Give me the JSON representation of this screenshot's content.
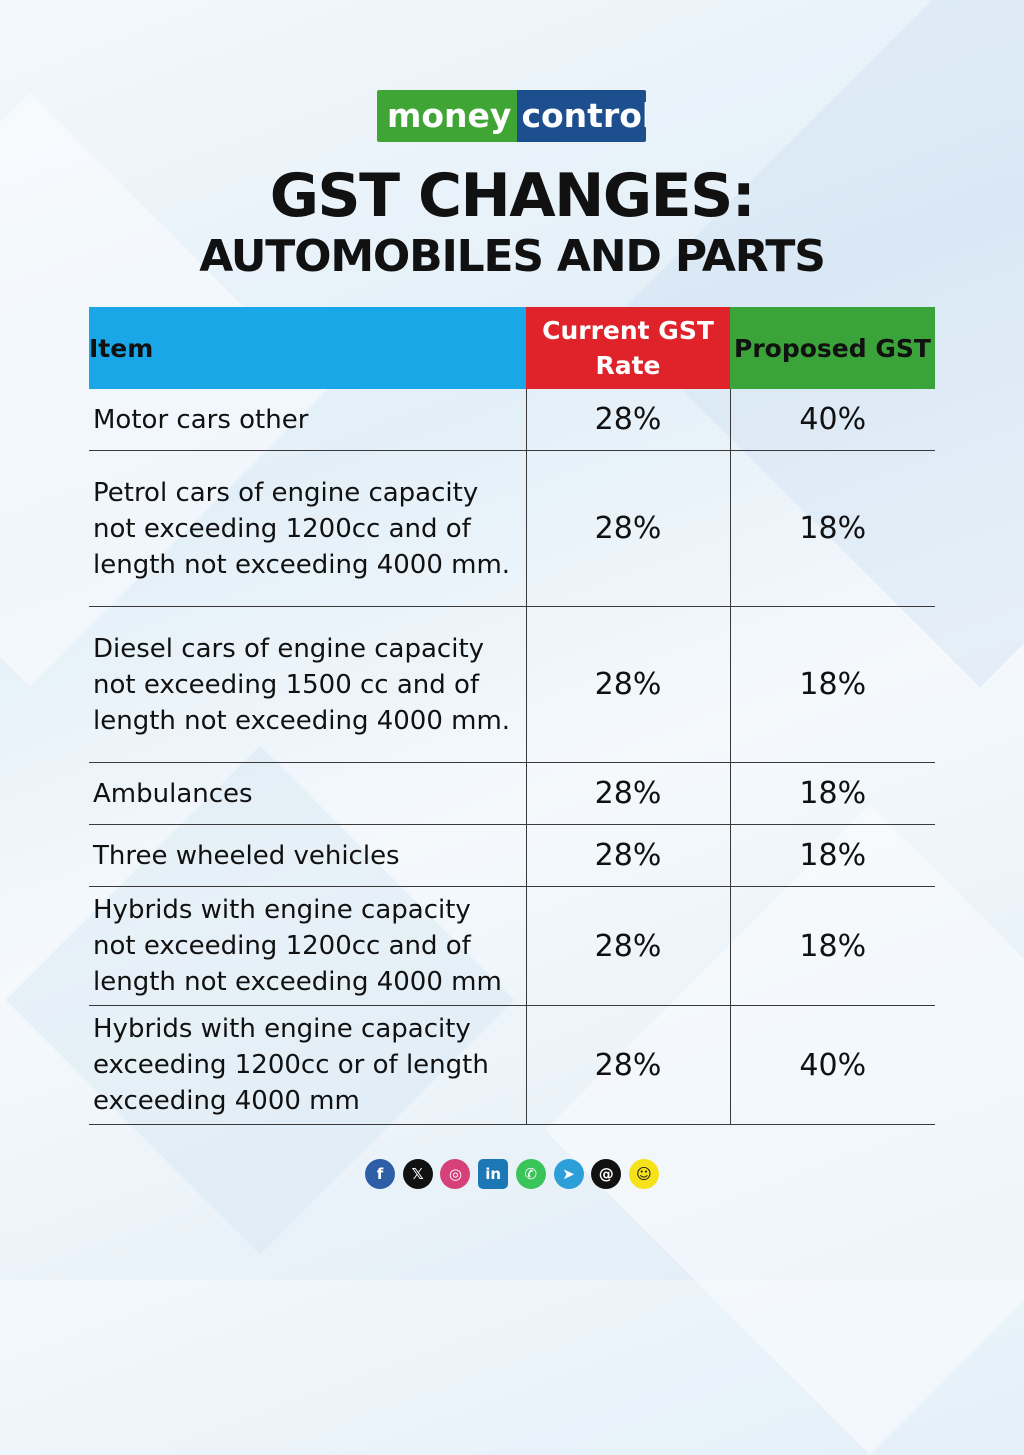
{
  "brand": {
    "part1": "money",
    "part2": "control",
    "color_green": "#3fa535",
    "color_blue": "#1d4f8f"
  },
  "title": {
    "line1": "GST CHANGES:",
    "line2": "AUTOMOBILES AND PARTS"
  },
  "chart_data": {
    "type": "table",
    "columns": [
      "Item",
      "Current GST Rate",
      "Proposed GST"
    ],
    "header_colors": {
      "item": "#1aa7e8",
      "current": "#e0232b",
      "proposed": "#3aa33a"
    },
    "rows": [
      {
        "item": "Motor cars other",
        "current": "28%",
        "proposed": "40%"
      },
      {
        "item": "Petrol cars of engine capacity not exceeding 1200cc and of length not exceeding 4000 mm.",
        "current": "28%",
        "proposed": "18%"
      },
      {
        "item": "Diesel cars of engine capacity not exceeding 1500 cc and of length not exceeding 4000 mm.",
        "current": "28%",
        "proposed": "18%"
      },
      {
        "item": "Ambulances",
        "current": "28%",
        "proposed": "18%"
      },
      {
        "item": "Three wheeled vehicles",
        "current": "28%",
        "proposed": "18%"
      },
      {
        "item": "Hybrids with engine capacity not exceeding 1200cc and of length not exceeding 4000 mm",
        "current": "28%",
        "proposed": "18%"
      },
      {
        "item": "Hybrids with engine capacity exceeding 1200cc or of length exceeding 4000 mm",
        "current": "28%",
        "proposed": "40%"
      }
    ]
  },
  "social": [
    {
      "icon": "facebook-icon",
      "glyph": "f"
    },
    {
      "icon": "x-icon",
      "glyph": "𝕏"
    },
    {
      "icon": "instagram-icon",
      "glyph": "◎"
    },
    {
      "icon": "linkedin-icon",
      "glyph": "in"
    },
    {
      "icon": "whatsapp-icon",
      "glyph": "✆"
    },
    {
      "icon": "telegram-icon",
      "glyph": "➤"
    },
    {
      "icon": "threads-icon",
      "glyph": "@"
    },
    {
      "icon": "snapchat-icon",
      "glyph": "☺"
    }
  ]
}
